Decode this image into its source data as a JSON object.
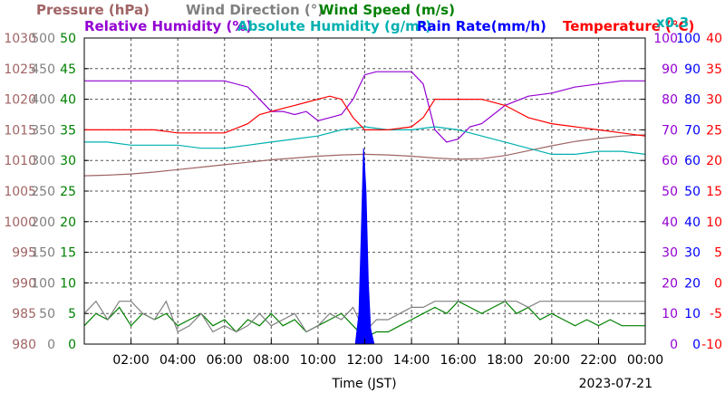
{
  "chart_data": {
    "type": "line",
    "date": "2023-07-21",
    "xlabel": "Time (JST)",
    "x_ticks": [
      "02:00",
      "04:00",
      "06:00",
      "08:00",
      "10:00",
      "12:00",
      "14:00",
      "16:00",
      "18:00",
      "20:00",
      "22:00",
      "00:00"
    ],
    "xlim": [
      0,
      24
    ],
    "legend_row1": [
      {
        "label": "Pressure (hPa)",
        "color": "#a06464"
      },
      {
        "label": "Wind Direction (°)",
        "color": "#808080"
      },
      {
        "label": "Wind Speed (m/s)",
        "color": "#008000"
      }
    ],
    "legend_row2": [
      {
        "label": "Relative Humidity (%)",
        "color": "#9400d3"
      },
      {
        "label": "Absolute Humidity (g/m³)",
        "color": "#00b0b0"
      },
      {
        "label": "Rain Rate(mm/h)",
        "color": "#0000ff"
      },
      {
        "label": "Temperature (°C)",
        "color": "#ff0000"
      }
    ],
    "rain_scale_note": "x0.3",
    "axes": {
      "pressure": {
        "ticks": [
          "980",
          "985",
          "990",
          "995",
          "1000",
          "1005",
          "1010",
          "1015",
          "1020",
          "1025",
          "1030"
        ],
        "ylim": [
          980,
          1030
        ],
        "color": "#a06464"
      },
      "wind_direction": {
        "ticks": [
          "0",
          "50",
          "100",
          "150",
          "200",
          "250",
          "300",
          "350",
          "400",
          "450",
          "500"
        ],
        "ylim": [
          0,
          500
        ],
        "color": "#808080"
      },
      "wind_speed": {
        "ticks": [
          "0",
          "5",
          "10",
          "15",
          "20",
          "25",
          "30",
          "35",
          "40",
          "45",
          "50"
        ],
        "ylim": [
          0,
          50
        ],
        "color": "#008000"
      },
      "humidity": {
        "ticks": [
          "0",
          "10",
          "20",
          "30",
          "40",
          "50",
          "60",
          "70",
          "80",
          "90",
          "100"
        ],
        "ylim": [
          0,
          100
        ],
        "color": "#9400d3"
      },
      "rain_rate": {
        "ticks": [
          "0",
          "10",
          "20",
          "30",
          "40",
          "50",
          "60",
          "70",
          "80",
          "90",
          "100"
        ],
        "ylim": [
          0,
          100
        ],
        "color": "#0000ff"
      },
      "temperature": {
        "ticks": [
          "-10",
          "-5",
          "0",
          "5",
          "10",
          "15",
          "20",
          "25",
          "30",
          "35",
          "40"
        ],
        "ylim": [
          -10,
          40
        ],
        "color": "#ff0000"
      }
    },
    "series": [
      {
        "name": "Pressure (hPa)",
        "axis": "pressure",
        "color": "#a06464",
        "x": [
          0,
          1,
          2,
          3,
          4,
          5,
          6,
          7,
          8,
          9,
          10,
          11,
          12,
          13,
          14,
          15,
          16,
          17,
          18,
          19,
          20,
          21,
          22,
          23,
          24
        ],
        "y": [
          1007.5,
          1007.6,
          1007.8,
          1008.1,
          1008.5,
          1008.9,
          1009.3,
          1009.7,
          1010.1,
          1010.4,
          1010.7,
          1010.9,
          1011.0,
          1010.9,
          1010.7,
          1010.4,
          1010.2,
          1010.3,
          1010.8,
          1011.6,
          1012.4,
          1013.1,
          1013.6,
          1014.0,
          1014.2
        ]
      },
      {
        "name": "Relative Humidity (%)",
        "axis": "humidity",
        "color": "#9400d3",
        "x": [
          0,
          1,
          2,
          3,
          4,
          5,
          6,
          7,
          7.5,
          8,
          8.5,
          9,
          9.5,
          10,
          10.5,
          11,
          11.5,
          12,
          12.5,
          13,
          14,
          14.5,
          15,
          15.5,
          16,
          16.5,
          17,
          18,
          19,
          20,
          21,
          22,
          23,
          24
        ],
        "y": [
          86,
          86,
          86,
          86,
          86,
          86,
          86,
          84,
          80,
          76,
          76,
          75,
          76,
          73,
          74,
          75,
          80,
          88,
          89,
          89,
          89,
          85,
          70,
          66,
          67,
          71,
          72,
          78,
          81,
          82,
          84,
          85,
          86,
          86
        ]
      },
      {
        "name": "Absolute Humidity (g/m³)",
        "axis": "humidity",
        "color": "#00b0b0",
        "x": [
          0,
          1,
          2,
          3,
          4,
          5,
          6,
          7,
          8,
          9,
          10,
          11,
          12,
          13,
          14,
          15,
          16,
          17,
          18,
          19,
          20,
          21,
          22,
          23,
          24
        ],
        "y": [
          66,
          66,
          65,
          65,
          65,
          64,
          64,
          65,
          66,
          67,
          68,
          70,
          71,
          70,
          70,
          71,
          70,
          68,
          66,
          64,
          62,
          62,
          63,
          63,
          62
        ]
      },
      {
        "name": "Temperature (°C)",
        "axis": "temperature",
        "color": "#ff0000",
        "x": [
          0,
          1,
          2,
          3,
          4,
          5,
          6,
          7,
          7.5,
          8,
          8.5,
          9,
          9.5,
          10,
          10.5,
          11,
          11.5,
          12,
          12.5,
          13,
          14,
          14.5,
          15,
          15.5,
          16,
          16.5,
          17,
          18,
          19,
          20,
          21,
          22,
          23,
          24
        ],
        "y": [
          25,
          25,
          25,
          25,
          24.5,
          24.5,
          24.5,
          26,
          27.5,
          28,
          28.5,
          29,
          29.5,
          30,
          30.5,
          30,
          27,
          25,
          25,
          25,
          25.5,
          27,
          30,
          30,
          30,
          30,
          30,
          29,
          27,
          26,
          25.5,
          25,
          24.5,
          24
        ]
      },
      {
        "name": "Wind Speed (m/s)",
        "axis": "wind_speed",
        "color": "#008000",
        "x": [
          0,
          0.5,
          1,
          1.5,
          2,
          2.5,
          3,
          3.5,
          4,
          4.5,
          5,
          5.5,
          6,
          6.5,
          7,
          7.5,
          8,
          8.5,
          9,
          9.5,
          10,
          10.5,
          11,
          11.5,
          12,
          12.5,
          13,
          13.5,
          14,
          14.5,
          15,
          15.5,
          16,
          16.5,
          17,
          17.5,
          18,
          18.5,
          19,
          19.5,
          20,
          20.5,
          21,
          21.5,
          22,
          22.5,
          23,
          23.5,
          24
        ],
        "y": [
          3,
          5,
          4,
          6,
          3,
          5,
          4,
          5,
          3,
          4,
          5,
          3,
          4,
          2,
          4,
          3,
          5,
          3,
          4,
          2,
          3,
          4,
          5,
          3,
          1,
          2,
          2,
          3,
          4,
          5,
          6,
          5,
          7,
          6,
          5,
          6,
          7,
          5,
          6,
          4,
          5,
          4,
          3,
          4,
          3,
          4,
          3,
          3,
          3
        ]
      },
      {
        "name": "Wind Direction (°)",
        "axis": "wind_direction",
        "color": "#808080",
        "x": [
          0,
          0.5,
          1,
          1.5,
          2,
          2.5,
          3,
          3.5,
          4,
          4.5,
          5,
          5.5,
          6,
          6.5,
          7,
          7.5,
          8,
          8.5,
          9,
          9.5,
          10,
          10.5,
          11,
          11.5,
          12,
          12.5,
          13,
          13.5,
          14,
          14.5,
          15,
          15.5,
          16,
          16.5,
          17,
          17.5,
          18,
          18.5,
          19,
          19.5,
          20,
          20.5,
          21,
          21.5,
          22,
          22.5,
          23,
          23.5,
          24
        ],
        "y": [
          50,
          70,
          40,
          70,
          70,
          50,
          40,
          70,
          20,
          30,
          50,
          20,
          30,
          20,
          30,
          50,
          30,
          40,
          50,
          20,
          30,
          50,
          40,
          60,
          20,
          40,
          40,
          50,
          60,
          60,
          70,
          70,
          70,
          70,
          70,
          70,
          70,
          70,
          60,
          70,
          70,
          70,
          70,
          70,
          70,
          70,
          70,
          70,
          70
        ]
      },
      {
        "name": "Rain Rate(mm/h)",
        "axis": "rain_rate",
        "color": "#0000ff",
        "x": [
          0,
          11.6,
          11.75,
          11.85,
          11.95,
          12.05,
          12.15,
          12.25,
          12.4,
          24
        ],
        "y": [
          0,
          0,
          10,
          35,
          64,
          50,
          20,
          5,
          0,
          0
        ]
      }
    ]
  }
}
